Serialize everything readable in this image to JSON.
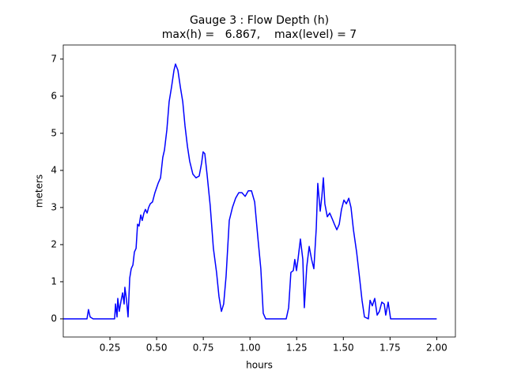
{
  "chart_data": {
    "type": "line",
    "title": "Gauge 3 : Flow Depth (h)",
    "subtitle": "max(h) =   6.867,    max(level) = 7",
    "xlabel": "hours",
    "ylabel": "meters",
    "x": [
      0,
      0.127,
      0.135,
      0.144,
      0.16,
      0.275,
      0.28,
      0.288,
      0.292,
      0.3,
      0.31,
      0.318,
      0.326,
      0.33,
      0.339,
      0.347,
      0.356,
      0.364,
      0.373,
      0.381,
      0.39,
      0.398,
      0.406,
      0.415,
      0.423,
      0.432,
      0.44,
      0.449,
      0.457,
      0.466,
      0.478,
      0.491,
      0.508,
      0.521,
      0.533,
      0.542,
      0.555,
      0.567,
      0.58,
      0.593,
      0.601,
      0.614,
      0.627,
      0.64,
      0.652,
      0.665,
      0.677,
      0.694,
      0.711,
      0.728,
      0.741,
      0.749,
      0.758,
      0.77,
      0.787,
      0.804,
      0.821,
      0.834,
      0.847,
      0.859,
      0.872,
      0.889,
      0.906,
      0.923,
      0.94,
      0.957,
      0.974,
      0.991,
      1.008,
      1.025,
      1.042,
      1.058,
      1.071,
      1.084,
      1.194,
      1.207,
      1.219,
      1.232,
      1.24,
      1.249,
      1.257,
      1.27,
      1.283,
      1.291,
      1.304,
      1.317,
      1.33,
      1.342,
      1.355,
      1.363,
      1.376,
      1.385,
      1.393,
      1.401,
      1.414,
      1.427,
      1.44,
      1.452,
      1.465,
      1.478,
      1.49,
      1.503,
      1.516,
      1.529,
      1.541,
      1.554,
      1.571,
      1.588,
      1.6,
      1.613,
      1.634,
      1.643,
      1.655,
      1.668,
      1.681,
      1.693,
      1.706,
      1.719,
      1.727,
      1.74,
      1.753,
      2.0
    ],
    "series": [
      {
        "color": "#0000ff",
        "values": [
          0,
          0,
          0.25,
          0.05,
          0,
          0,
          0.4,
          0.05,
          0.55,
          0.2,
          0.5,
          0.7,
          0.4,
          0.85,
          0.5,
          0.05,
          1.1,
          1.35,
          1.45,
          1.8,
          1.9,
          2.55,
          2.5,
          2.8,
          2.65,
          2.85,
          2.95,
          2.85,
          3.0,
          3.1,
          3.15,
          3.4,
          3.65,
          3.8,
          4.35,
          4.55,
          5.1,
          5.85,
          6.25,
          6.7,
          6.867,
          6.7,
          6.25,
          5.85,
          5.2,
          4.65,
          4.25,
          3.9,
          3.8,
          3.85,
          4.2,
          4.5,
          4.45,
          3.9,
          3.05,
          1.9,
          1.25,
          0.6,
          0.2,
          0.4,
          1.15,
          2.65,
          3.0,
          3.25,
          3.4,
          3.4,
          3.3,
          3.45,
          3.45,
          3.15,
          2.2,
          1.35,
          0.15,
          0,
          0,
          0.3,
          1.25,
          1.3,
          1.6,
          1.3,
          1.6,
          2.15,
          1.6,
          0.3,
          1.4,
          1.95,
          1.6,
          1.35,
          2.45,
          3.65,
          2.9,
          3.3,
          3.8,
          3.1,
          2.75,
          2.85,
          2.7,
          2.55,
          2.4,
          2.55,
          2.95,
          3.2,
          3.1,
          3.25,
          3.0,
          2.4,
          1.8,
          1.05,
          0.5,
          0.05,
          0,
          0.5,
          0.35,
          0.55,
          0.1,
          0.2,
          0.45,
          0.4,
          0.1,
          0.45,
          0,
          0
        ]
      }
    ],
    "xlim": [
      0,
      2.1
    ],
    "ylim": [
      -0.49,
      7.38
    ],
    "xticks": [
      0.25,
      {
        "value": 0.5,
        "label": "0.50"
      },
      0.75,
      {
        "value": 1.0,
        "label": "1.00"
      },
      1.25,
      {
        "value": 1.5,
        "label": "1.50"
      },
      1.75,
      {
        "value": 2.0,
        "label": "2.00"
      }
    ],
    "yticks": [
      0,
      1,
      2,
      3,
      4,
      5,
      6,
      7
    ]
  }
}
